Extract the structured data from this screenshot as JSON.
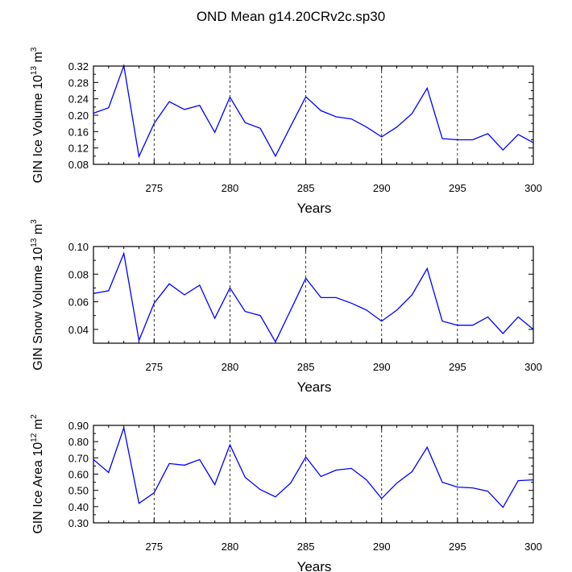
{
  "title": "OND Mean g14.20CRv2c.sp30",
  "colors": {
    "line": "#0000ff",
    "axis": "#000000",
    "grid": "#000000"
  },
  "chart_data": [
    {
      "type": "line",
      "id": "ice-volume",
      "ylabel": {
        "main": "GIN Ice Volume 10",
        "exp1": "13",
        "unit": " m",
        "exp2": "3"
      },
      "xlabel": "Years",
      "xlim": [
        271,
        300
      ],
      "ylim": [
        0.08,
        0.32
      ],
      "xticks": [
        275,
        280,
        285,
        290,
        295,
        300
      ],
      "xtick_labels": [
        "275",
        "280",
        "285",
        "290",
        "295",
        "300"
      ],
      "yticks": [
        0.08,
        0.12,
        0.16,
        0.2,
        0.24,
        0.28,
        0.32
      ],
      "ytick_labels": [
        "0.08",
        "0.12",
        "0.16",
        "0.20",
        "0.24",
        "0.28",
        "0.32"
      ],
      "x": [
        271,
        272,
        273,
        274,
        275,
        276,
        277,
        278,
        279,
        280,
        281,
        282,
        283,
        284,
        285,
        286,
        287,
        288,
        289,
        290,
        291,
        292,
        293,
        294,
        295,
        296,
        297,
        298,
        299,
        300
      ],
      "values": [
        0.205,
        0.218,
        0.321,
        0.099,
        0.18,
        0.233,
        0.214,
        0.224,
        0.158,
        0.244,
        0.182,
        0.168,
        0.1,
        0.173,
        0.245,
        0.211,
        0.196,
        0.191,
        0.171,
        0.147,
        0.171,
        0.204,
        0.266,
        0.143,
        0.14,
        0.14,
        0.155,
        0.115,
        0.153,
        0.133
      ]
    },
    {
      "type": "line",
      "id": "snow-volume",
      "ylabel": {
        "main": "GIN Snow Volume 10",
        "exp1": "13",
        "unit": " m",
        "exp2": "3"
      },
      "xlabel": "Years",
      "xlim": [
        271,
        300
      ],
      "ylim": [
        0.03,
        0.1
      ],
      "xticks": [
        275,
        280,
        285,
        290,
        295,
        300
      ],
      "xtick_labels": [
        "275",
        "280",
        "285",
        "290",
        "295",
        "300"
      ],
      "yticks": [
        0.04,
        0.06,
        0.08,
        0.1
      ],
      "ytick_labels": [
        "0.04",
        "0.06",
        "0.08",
        "0.10"
      ],
      "x": [
        271,
        272,
        273,
        274,
        275,
        276,
        277,
        278,
        279,
        280,
        281,
        282,
        283,
        284,
        285,
        286,
        287,
        288,
        289,
        290,
        291,
        292,
        293,
        294,
        295,
        296,
        297,
        298,
        299,
        300
      ],
      "values": [
        0.066,
        0.068,
        0.095,
        0.032,
        0.059,
        0.073,
        0.065,
        0.072,
        0.048,
        0.07,
        0.053,
        0.05,
        0.031,
        0.054,
        0.077,
        0.063,
        0.063,
        0.059,
        0.054,
        0.046,
        0.054,
        0.065,
        0.084,
        0.046,
        0.043,
        0.043,
        0.049,
        0.037,
        0.049,
        0.04
      ]
    },
    {
      "type": "line",
      "id": "ice-area",
      "ylabel": {
        "main": "GIN Ice Area 10",
        "exp1": "12",
        "unit": " m",
        "exp2": "2"
      },
      "xlabel": "Years",
      "xlim": [
        271,
        300
      ],
      "ylim": [
        0.3,
        0.9
      ],
      "xticks": [
        275,
        280,
        285,
        290,
        295,
        300
      ],
      "xtick_labels": [
        "275",
        "280",
        "285",
        "290",
        "295",
        "300"
      ],
      "yticks": [
        0.3,
        0.4,
        0.5,
        0.6,
        0.7,
        0.8,
        0.9
      ],
      "ytick_labels": [
        "0.30",
        "0.40",
        "0.50",
        "0.60",
        "0.70",
        "0.80",
        "0.90"
      ],
      "x": [
        271,
        272,
        273,
        274,
        275,
        276,
        277,
        278,
        279,
        280,
        281,
        282,
        283,
        284,
        285,
        286,
        287,
        288,
        289,
        290,
        291,
        292,
        293,
        294,
        295,
        296,
        297,
        298,
        299,
        300
      ],
      "values": [
        0.69,
        0.61,
        0.885,
        0.42,
        0.485,
        0.665,
        0.655,
        0.69,
        0.535,
        0.78,
        0.58,
        0.505,
        0.46,
        0.545,
        0.705,
        0.585,
        0.625,
        0.635,
        0.565,
        0.45,
        0.545,
        0.615,
        0.765,
        0.55,
        0.52,
        0.515,
        0.495,
        0.395,
        0.56,
        0.565
      ]
    }
  ]
}
